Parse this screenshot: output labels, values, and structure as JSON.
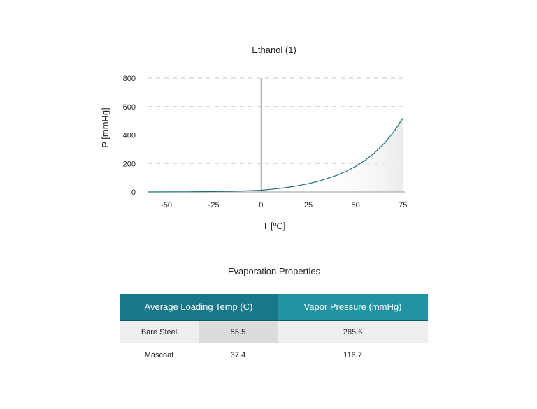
{
  "chart_data": {
    "type": "line",
    "title": "Ethanol (1)",
    "xlabel": "T [ºC]",
    "ylabel": "P [mmHg]",
    "xlim": [
      -60,
      76
    ],
    "ylim": [
      0,
      800
    ],
    "xticks": [
      -50,
      -25,
      0,
      25,
      50,
      75
    ],
    "yticks": [
      0,
      200,
      400,
      600,
      800
    ],
    "grid": "horizontal dashed",
    "line_color": "#1d6f7d",
    "series": [
      {
        "x": [
          -60,
          -50,
          -40,
          -30,
          -20,
          -10,
          0,
          5,
          10,
          15,
          20,
          25,
          30,
          35,
          40,
          45,
          50,
          55,
          60,
          65,
          70,
          75
        ],
        "y": [
          0.1,
          0.4,
          1.0,
          2.0,
          4.0,
          7.0,
          12.0,
          18,
          25,
          34,
          45,
          58,
          74,
          94,
          117,
          145,
          180,
          222,
          275,
          340,
          420,
          520
        ]
      }
    ]
  },
  "table": {
    "title": "Evaporation Properties",
    "headers": [
      "Average Loading Temp (C)",
      "Vapor Pressure (mmHg)"
    ],
    "rows": [
      {
        "name": "Bare Steel",
        "temp": "55.5",
        "pressure": "285.6"
      },
      {
        "name": "Mascoat",
        "temp": "37.4",
        "pressure": "116.7"
      }
    ]
  },
  "colors": {
    "header_dark": "#17788a",
    "header_light": "#2293a1"
  }
}
